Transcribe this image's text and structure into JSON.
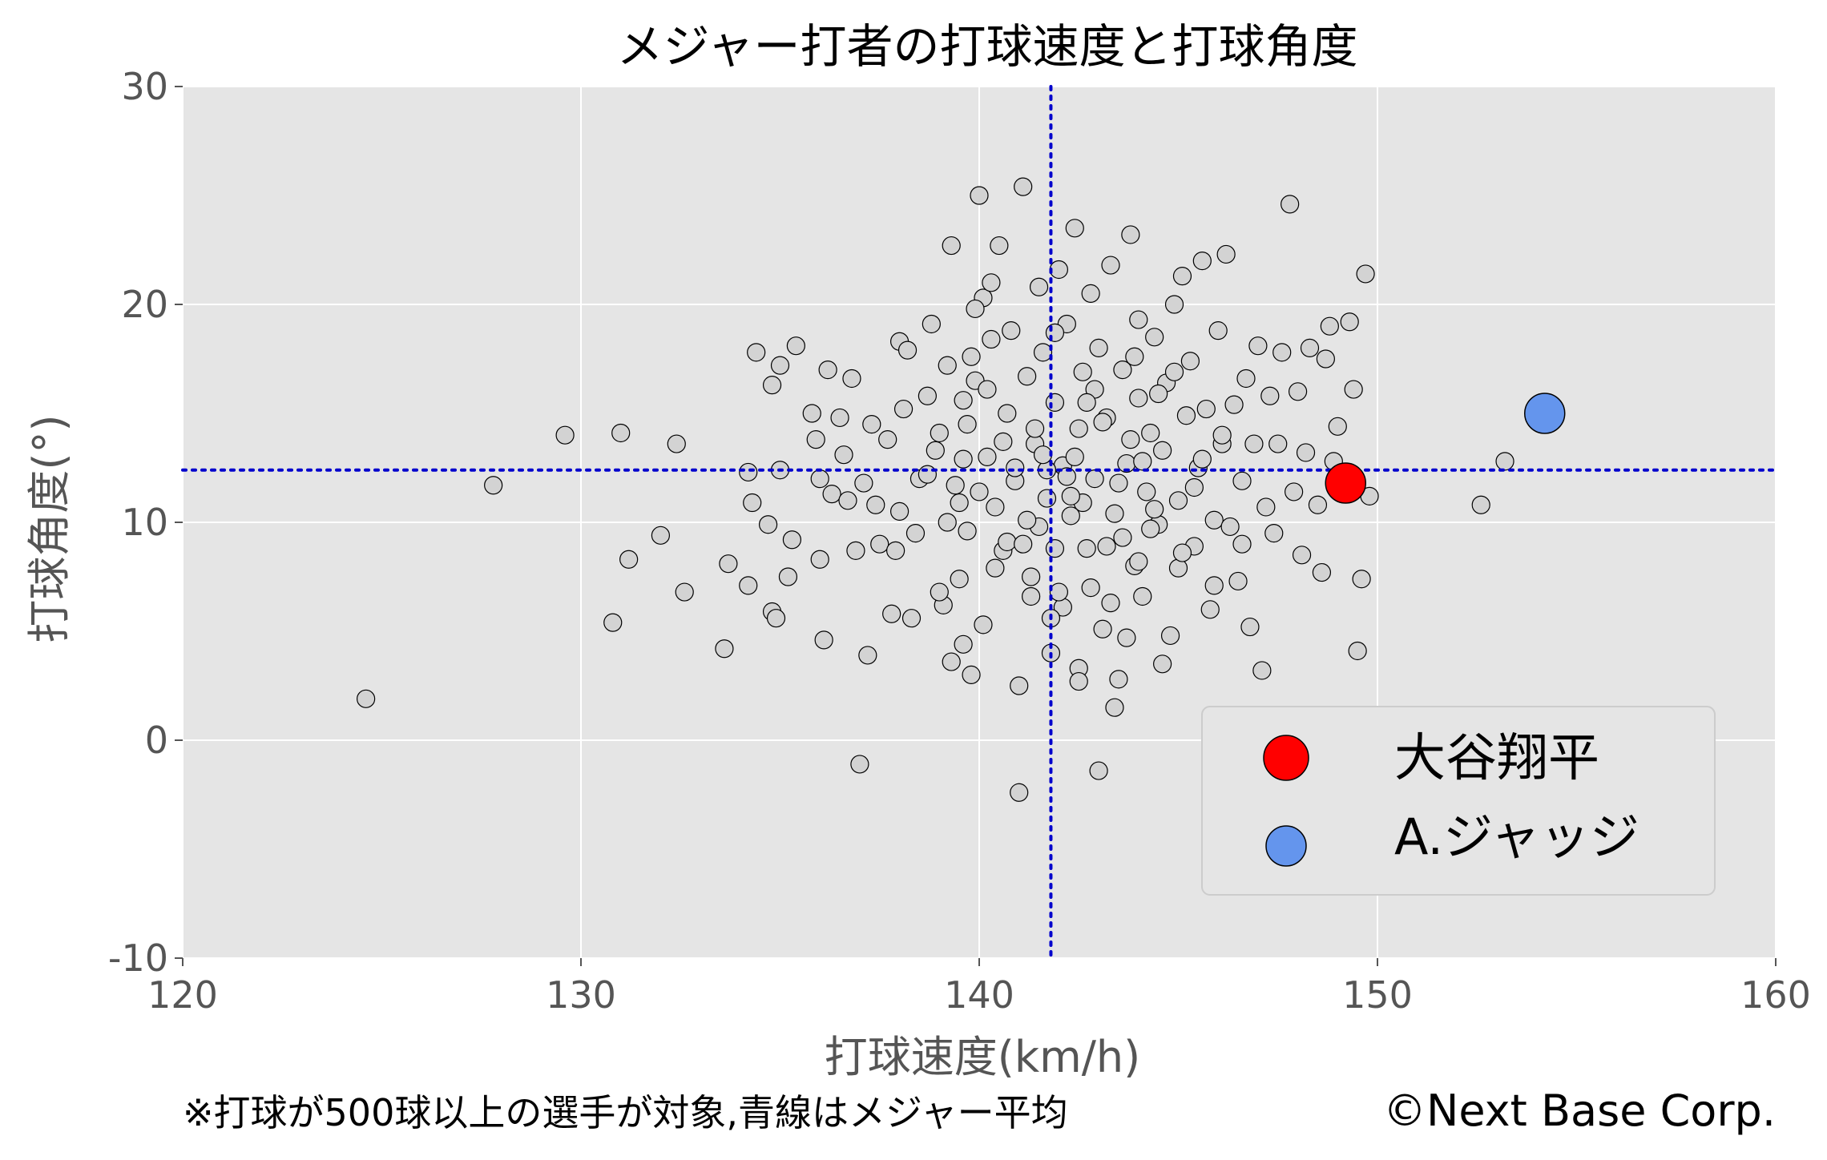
{
  "chart_data": {
    "type": "scatter",
    "title": "メジャー打者の打球速度と打球角度",
    "xlabel": "打球速度(km/h)",
    "ylabel": "打球角度(°)",
    "xlim": [
      120,
      160
    ],
    "ylim": [
      -10,
      30
    ],
    "xticks": [
      120,
      130,
      140,
      150,
      160
    ],
    "yticks": [
      -10,
      0,
      10,
      20,
      30
    ],
    "xtick_labels": [
      "120",
      "130",
      "140",
      "150",
      "160"
    ],
    "ytick_labels": [
      "-10",
      "0",
      "10",
      "20",
      "30"
    ],
    "grid": true,
    "background": "#e5e5e5",
    "mean_lines": {
      "x": 141.8,
      "y": 12.4,
      "color": "#0000cc",
      "style": "dotted"
    },
    "legend": {
      "placement": "lower-right",
      "entries": [
        {
          "label": "大谷翔平",
          "color": "#ff0000"
        },
        {
          "label": "A.ジャッジ",
          "color": "#6495ed"
        }
      ]
    },
    "series": [
      {
        "name": "大谷翔平",
        "color": "#ff0000",
        "points": [
          [
            149.2,
            11.8
          ]
        ]
      },
      {
        "name": "A.ジャッジ",
        "color": "#6495ed",
        "points": [
          [
            154.2,
            15.0
          ]
        ]
      },
      {
        "name": "",
        "color": "#d3d3d3",
        "points": [
          [
            124.6,
            1.9
          ],
          [
            127.8,
            11.7
          ],
          [
            129.6,
            14.0
          ],
          [
            130.8,
            5.4
          ],
          [
            131.0,
            14.1
          ],
          [
            131.2,
            8.3
          ],
          [
            132.0,
            9.4
          ],
          [
            132.4,
            13.6
          ],
          [
            132.6,
            6.8
          ],
          [
            133.6,
            4.2
          ],
          [
            133.7,
            8.1
          ],
          [
            134.2,
            12.3
          ],
          [
            134.2,
            7.1
          ],
          [
            134.3,
            10.9
          ],
          [
            134.4,
            17.8
          ],
          [
            134.7,
            9.9
          ],
          [
            134.8,
            5.9
          ],
          [
            134.8,
            16.3
          ],
          [
            134.9,
            5.6
          ],
          [
            135.0,
            12.4
          ],
          [
            135.2,
            7.5
          ],
          [
            135.3,
            9.2
          ],
          [
            135.4,
            18.1
          ],
          [
            135.0,
            17.2
          ],
          [
            135.8,
            15.0
          ],
          [
            135.9,
            13.8
          ],
          [
            136.0,
            8.3
          ],
          [
            136.1,
            4.6
          ],
          [
            136.2,
            17.0
          ],
          [
            136.3,
            11.3
          ],
          [
            136.5,
            14.8
          ],
          [
            136.6,
            13.1
          ],
          [
            136.7,
            11.0
          ],
          [
            136.8,
            16.6
          ],
          [
            136.9,
            8.7
          ],
          [
            137.1,
            11.8
          ],
          [
            137.2,
            3.9
          ],
          [
            137.3,
            14.5
          ],
          [
            137.5,
            9.0
          ],
          [
            137.7,
            13.8
          ],
          [
            137.8,
            5.8
          ],
          [
            138.0,
            18.3
          ],
          [
            138.0,
            10.5
          ],
          [
            138.2,
            17.9
          ],
          [
            138.3,
            5.6
          ],
          [
            138.5,
            12.0
          ],
          [
            138.7,
            15.8
          ],
          [
            138.8,
            19.1
          ],
          [
            139.0,
            14.1
          ],
          [
            139.1,
            6.2
          ],
          [
            139.2,
            10.0
          ],
          [
            139.3,
            3.6
          ],
          [
            139.4,
            11.7
          ],
          [
            139.5,
            7.4
          ],
          [
            139.6,
            15.6
          ],
          [
            139.6,
            12.9
          ],
          [
            139.7,
            9.6
          ],
          [
            139.8,
            17.6
          ],
          [
            139.8,
            3.0
          ],
          [
            139.9,
            16.5
          ],
          [
            140.0,
            25.0
          ],
          [
            140.1,
            20.3
          ],
          [
            140.2,
            13.0
          ],
          [
            140.3,
            21.0
          ],
          [
            140.4,
            10.7
          ],
          [
            140.5,
            22.7
          ],
          [
            140.6,
            8.7
          ],
          [
            140.7,
            15.0
          ],
          [
            140.8,
            18.8
          ],
          [
            140.9,
            11.9
          ],
          [
            141.0,
            2.5
          ],
          [
            141.0,
            -2.4
          ],
          [
            141.1,
            25.4
          ],
          [
            141.2,
            16.7
          ],
          [
            141.3,
            6.6
          ],
          [
            141.4,
            13.6
          ],
          [
            141.5,
            20.8
          ],
          [
            141.5,
            9.8
          ],
          [
            141.6,
            17.8
          ],
          [
            141.7,
            11.1
          ],
          [
            141.8,
            4.0
          ],
          [
            141.9,
            15.5
          ],
          [
            141.9,
            8.8
          ],
          [
            142.0,
            21.6
          ],
          [
            142.1,
            12.6
          ],
          [
            142.1,
            6.1
          ],
          [
            142.2,
            19.1
          ],
          [
            142.3,
            10.3
          ],
          [
            142.4,
            23.5
          ],
          [
            142.5,
            14.3
          ],
          [
            142.5,
            3.3
          ],
          [
            142.6,
            16.9
          ],
          [
            142.7,
            8.8
          ],
          [
            142.8,
            20.5
          ],
          [
            142.9,
            12.0
          ],
          [
            143.0,
            -1.4
          ],
          [
            143.0,
            18.0
          ],
          [
            143.1,
            5.1
          ],
          [
            143.2,
            14.8
          ],
          [
            143.3,
            21.8
          ],
          [
            143.4,
            10.4
          ],
          [
            143.5,
            2.8
          ],
          [
            143.6,
            17.0
          ],
          [
            143.7,
            12.7
          ],
          [
            143.8,
            23.2
          ],
          [
            143.9,
            8.0
          ],
          [
            144.0,
            15.7
          ],
          [
            144.0,
            19.3
          ],
          [
            144.1,
            6.6
          ],
          [
            144.2,
            11.4
          ],
          [
            144.3,
            14.1
          ],
          [
            144.4,
            18.5
          ],
          [
            144.5,
            9.9
          ],
          [
            144.6,
            13.3
          ],
          [
            144.7,
            16.4
          ],
          [
            144.8,
            4.8
          ],
          [
            144.9,
            20.0
          ],
          [
            145.0,
            11.0
          ],
          [
            145.0,
            7.9
          ],
          [
            145.1,
            21.3
          ],
          [
            145.2,
            14.9
          ],
          [
            145.3,
            17.4
          ],
          [
            145.4,
            8.9
          ],
          [
            145.5,
            12.5
          ],
          [
            145.6,
            22.0
          ],
          [
            145.7,
            15.2
          ],
          [
            145.8,
            6.0
          ],
          [
            145.9,
            10.1
          ],
          [
            146.0,
            18.8
          ],
          [
            146.1,
            13.6
          ],
          [
            146.2,
            22.3
          ],
          [
            146.3,
            9.8
          ],
          [
            146.4,
            15.4
          ],
          [
            146.5,
            7.3
          ],
          [
            146.6,
            11.9
          ],
          [
            146.7,
            16.6
          ],
          [
            146.8,
            5.2
          ],
          [
            146.9,
            13.6
          ],
          [
            147.0,
            18.1
          ],
          [
            147.1,
            3.2
          ],
          [
            147.2,
            10.7
          ],
          [
            147.3,
            15.8
          ],
          [
            147.4,
            9.5
          ],
          [
            147.5,
            13.6
          ],
          [
            147.6,
            17.8
          ],
          [
            147.8,
            24.6
          ],
          [
            147.9,
            11.4
          ],
          [
            148.0,
            16.0
          ],
          [
            148.1,
            8.5
          ],
          [
            148.2,
            13.2
          ],
          [
            148.3,
            18.0
          ],
          [
            148.5,
            10.8
          ],
          [
            148.6,
            7.7
          ],
          [
            148.7,
            17.5
          ],
          [
            148.8,
            19.0
          ],
          [
            148.9,
            12.8
          ],
          [
            149.0,
            14.4
          ],
          [
            149.3,
            19.2
          ],
          [
            149.4,
            16.1
          ],
          [
            149.5,
            4.1
          ],
          [
            149.6,
            7.4
          ],
          [
            149.7,
            21.4
          ],
          [
            149.8,
            11.2
          ],
          [
            152.6,
            10.8
          ],
          [
            153.2,
            12.8
          ],
          [
            137.0,
            -1.1
          ],
          [
            139.3,
            22.7
          ],
          [
            140.2,
            16.1
          ],
          [
            141.4,
            14.3
          ],
          [
            142.6,
            10.9
          ],
          [
            143.6,
            9.3
          ],
          [
            144.1,
            12.8
          ],
          [
            140.6,
            13.7
          ],
          [
            141.9,
            18.7
          ],
          [
            138.4,
            9.5
          ],
          [
            139.9,
            19.8
          ],
          [
            142.9,
            16.1
          ],
          [
            143.3,
            6.3
          ],
          [
            144.5,
            15.9
          ],
          [
            138.7,
            12.2
          ],
          [
            140.9,
            12.5
          ],
          [
            141.7,
            12.4
          ],
          [
            142.3,
            11.2
          ],
          [
            143.8,
            13.8
          ],
          [
            145.4,
            11.6
          ],
          [
            139.5,
            10.9
          ],
          [
            140.7,
            9.1
          ],
          [
            141.3,
            7.5
          ],
          [
            142.0,
            6.8
          ],
          [
            143.7,
            4.7
          ],
          [
            144.6,
            3.5
          ],
          [
            136.0,
            12.0
          ],
          [
            137.4,
            10.8
          ],
          [
            138.9,
            13.3
          ],
          [
            140.0,
            11.4
          ],
          [
            141.2,
            10.1
          ],
          [
            142.4,
            13.0
          ],
          [
            143.1,
            14.6
          ],
          [
            144.4,
            10.6
          ],
          [
            145.6,
            12.9
          ],
          [
            146.1,
            14.0
          ],
          [
            139.2,
            17.2
          ],
          [
            140.3,
            18.4
          ],
          [
            142.7,
            15.5
          ],
          [
            143.9,
            17.6
          ],
          [
            144.9,
            16.9
          ],
          [
            138.1,
            15.2
          ],
          [
            139.7,
            14.5
          ],
          [
            141.6,
            13.1
          ],
          [
            142.2,
            12.1
          ],
          [
            143.5,
            11.8
          ],
          [
            144.3,
            9.7
          ],
          [
            145.1,
            8.6
          ],
          [
            146.6,
            9.0
          ],
          [
            137.9,
            8.7
          ],
          [
            139.0,
            6.8
          ],
          [
            140.1,
            5.3
          ],
          [
            141.8,
            5.6
          ],
          [
            142.8,
            7.0
          ],
          [
            144.0,
            8.2
          ],
          [
            145.9,
            7.1
          ],
          [
            141.1,
            9.0
          ],
          [
            143.2,
            8.9
          ],
          [
            140.4,
            7.9
          ],
          [
            139.6,
            4.4
          ],
          [
            142.5,
            2.7
          ],
          [
            143.4,
            1.5
          ]
        ]
      }
    ]
  },
  "footer": {
    "note": "※打球が500球以上の選手が対象,青線はメジャー平均",
    "credit": "©Next Base Corp."
  }
}
